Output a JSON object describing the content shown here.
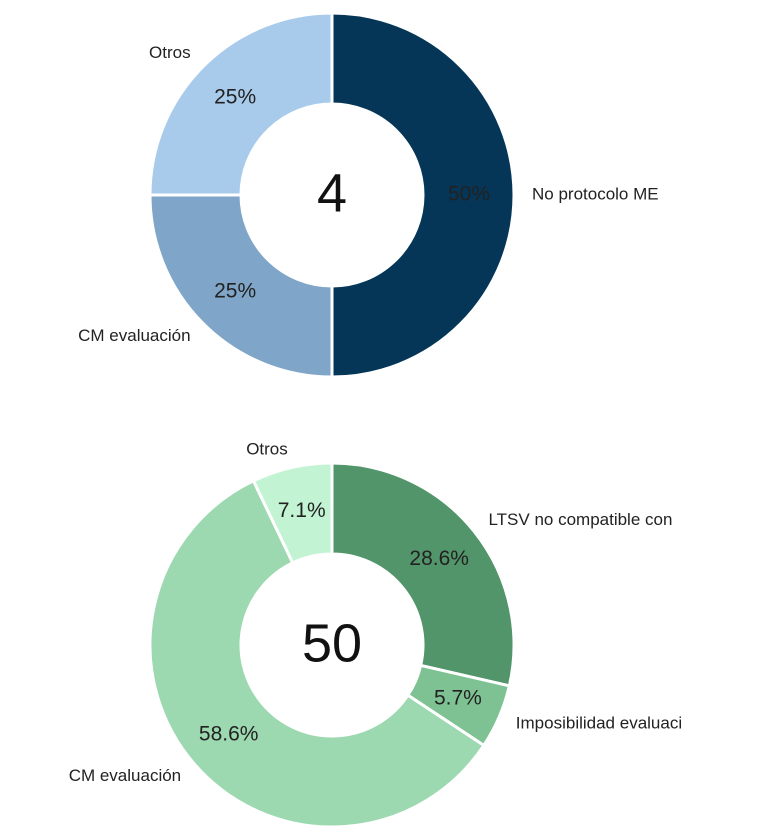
{
  "chart_data": [
    {
      "type": "donut",
      "total": 4,
      "categories": [
        "No protocolo ME",
        "CM evaluación",
        "Otros"
      ],
      "values": [
        50,
        25,
        25
      ],
      "value_labels": [
        "50%",
        "25%",
        "25%"
      ],
      "colors": [
        "#053657",
        "#7fa6c8",
        "#a8cbec"
      ]
    },
    {
      "type": "donut",
      "total": 50,
      "categories": [
        "LTSV no compatible con",
        "Imposibilidad evaluaci",
        "CM evaluación",
        "Otros"
      ],
      "values": [
        28.6,
        5.7,
        58.6,
        7.1
      ],
      "value_labels": [
        "28.6%",
        "5.7%",
        "58.6%",
        "7.1%"
      ],
      "colors": [
        "#52956a",
        "#7ec293",
        "#9cd8b0",
        "#c2f3d3"
      ]
    }
  ]
}
